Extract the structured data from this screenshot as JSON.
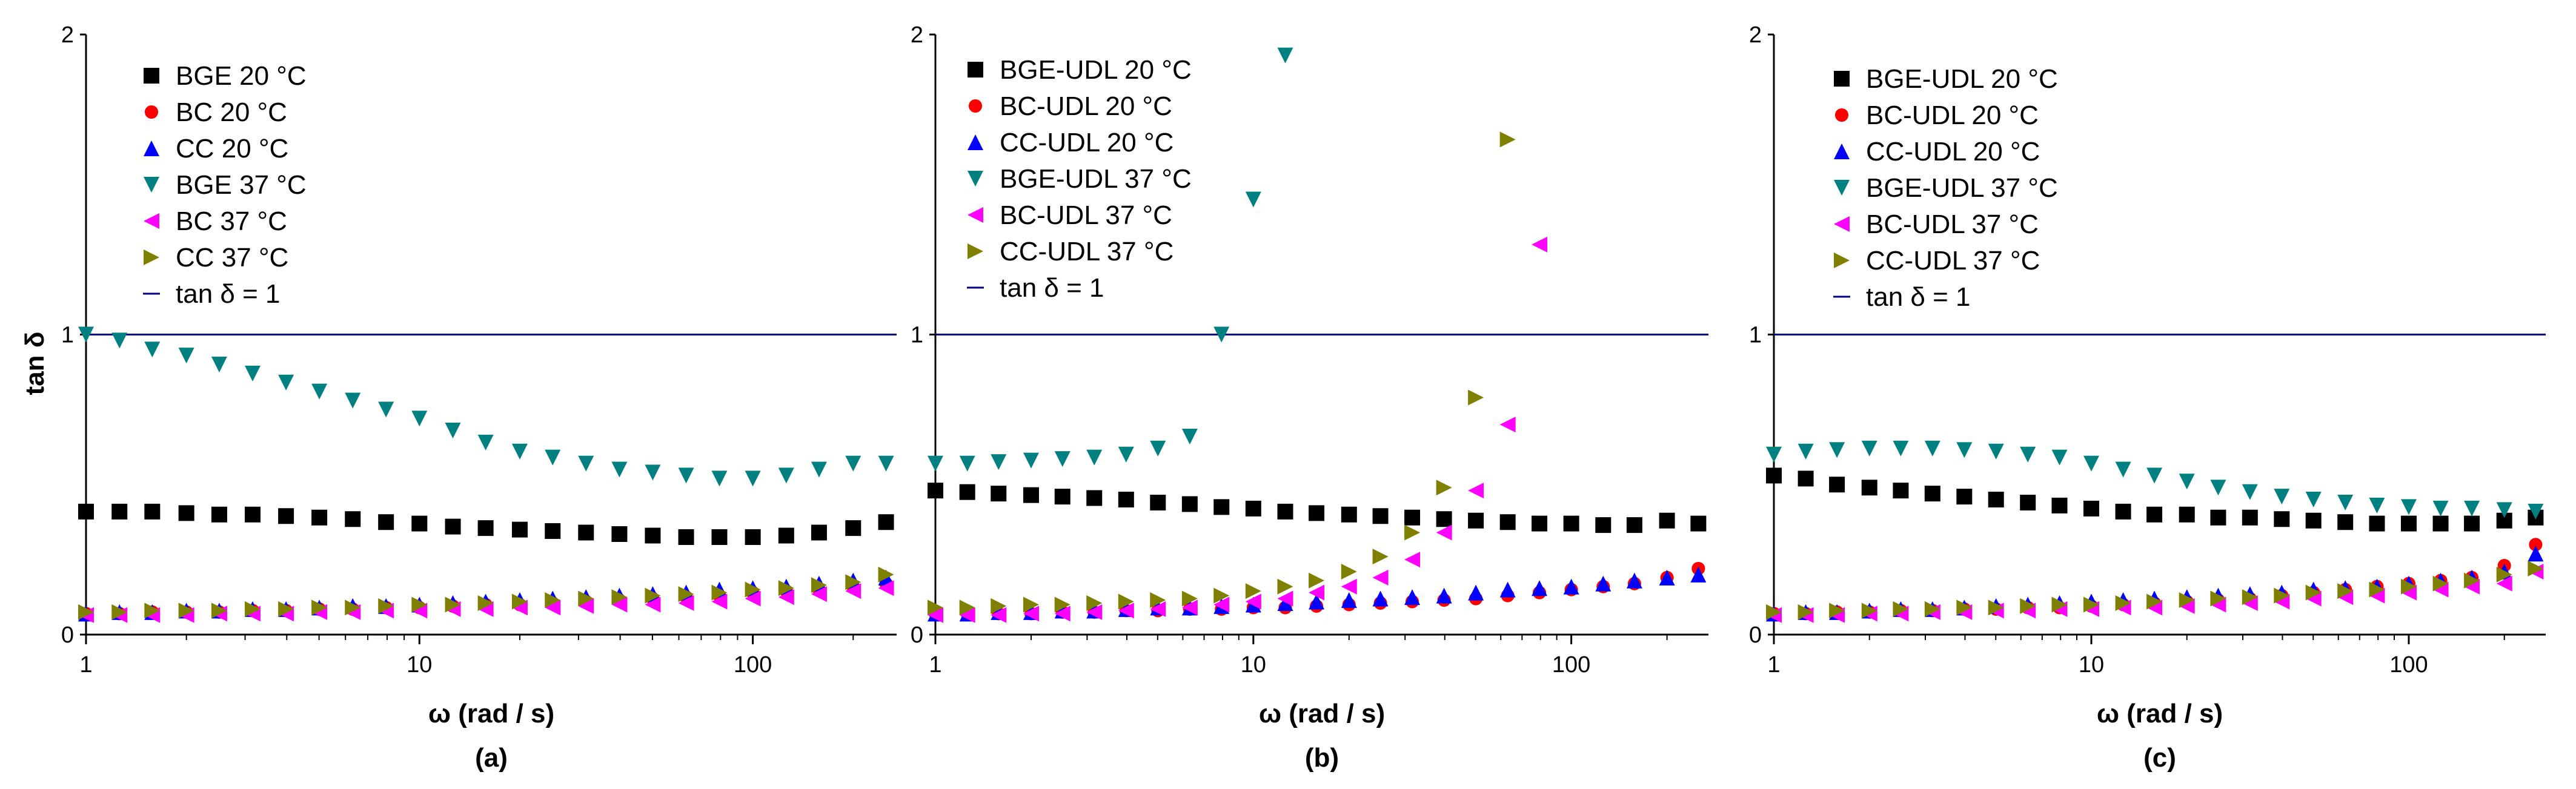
{
  "figure": {
    "xlabel": "ω (rad / s)",
    "ylabel": "tan δ",
    "yticks": [
      "0",
      "1",
      "2"
    ],
    "xticks": [
      "1",
      "10",
      "100"
    ],
    "colors": {
      "series_0": "#000000",
      "series_1": "#ff0000",
      "series_2": "#0000ff",
      "series_3": "#008080",
      "series_4": "#ff00ff",
      "series_5": "#808000",
      "tan1_line": "#000080"
    }
  },
  "chart_data": [
    {
      "type": "scatter",
      "panel_label": "(a)",
      "title": "",
      "xlabel": "ω (rad / s)",
      "ylabel": "tan δ",
      "xscale": "log",
      "xlim": [
        1,
        270
      ],
      "ylim": [
        0,
        2
      ],
      "xticks": [
        1,
        10,
        100
      ],
      "yticks": [
        0,
        1,
        2
      ],
      "hline": {
        "y": 1,
        "label": "tan δ = 1"
      },
      "legend_position": "top-left",
      "x": [
        1,
        1.26,
        1.58,
        2,
        2.51,
        3.16,
        3.98,
        5.01,
        6.31,
        7.94,
        10,
        12.6,
        15.8,
        20,
        25.1,
        31.6,
        39.8,
        50.1,
        63.1,
        79.4,
        100,
        126,
        158,
        200,
        251
      ],
      "series": [
        {
          "name": "BGE 20 °C",
          "marker": "square",
          "values": [
            0.41,
            0.41,
            0.41,
            0.405,
            0.4,
            0.4,
            0.395,
            0.39,
            0.385,
            0.375,
            0.37,
            0.36,
            0.355,
            0.35,
            0.345,
            0.34,
            0.335,
            0.33,
            0.325,
            0.325,
            0.325,
            0.33,
            0.34,
            0.355,
            0.375
          ]
        },
        {
          "name": "BC 20 °C",
          "marker": "circle",
          "values": [
            0.07,
            0.07,
            0.075,
            0.075,
            0.075,
            0.08,
            0.08,
            0.085,
            0.085,
            0.09,
            0.09,
            0.095,
            0.1,
            0.1,
            0.105,
            0.11,
            0.115,
            0.12,
            0.125,
            0.13,
            0.14,
            0.145,
            0.15,
            0.16,
            0.17
          ]
        },
        {
          "name": "CC 20 °C",
          "marker": "triangle-up",
          "values": [
            0.07,
            0.075,
            0.075,
            0.08,
            0.08,
            0.085,
            0.085,
            0.09,
            0.095,
            0.095,
            0.1,
            0.105,
            0.11,
            0.115,
            0.12,
            0.125,
            0.13,
            0.135,
            0.14,
            0.15,
            0.155,
            0.16,
            0.17,
            0.18,
            0.19
          ]
        },
        {
          "name": "BGE 37 °C",
          "marker": "triangle-down",
          "values": [
            1.0,
            0.98,
            0.95,
            0.93,
            0.9,
            0.87,
            0.84,
            0.81,
            0.78,
            0.75,
            0.72,
            0.68,
            0.64,
            0.61,
            0.59,
            0.57,
            0.55,
            0.54,
            0.53,
            0.52,
            0.52,
            0.53,
            0.55,
            0.57,
            0.57
          ]
        },
        {
          "name": "BC 37 °C",
          "marker": "triangle-left",
          "values": [
            0.065,
            0.065,
            0.065,
            0.065,
            0.07,
            0.07,
            0.07,
            0.075,
            0.075,
            0.08,
            0.08,
            0.085,
            0.085,
            0.09,
            0.09,
            0.095,
            0.1,
            0.1,
            0.105,
            0.11,
            0.12,
            0.125,
            0.135,
            0.145,
            0.155
          ]
        },
        {
          "name": "CC 37 °C",
          "marker": "triangle-right",
          "values": [
            0.075,
            0.075,
            0.08,
            0.08,
            0.08,
            0.085,
            0.085,
            0.09,
            0.09,
            0.095,
            0.1,
            0.1,
            0.105,
            0.11,
            0.115,
            0.12,
            0.125,
            0.13,
            0.135,
            0.14,
            0.15,
            0.155,
            0.165,
            0.175,
            0.2
          ]
        }
      ]
    },
    {
      "type": "scatter",
      "panel_label": "(b)",
      "title": "",
      "xlabel": "ω (rad / s)",
      "ylabel": "",
      "xscale": "log",
      "xlim": [
        1,
        270
      ],
      "ylim": [
        0,
        2
      ],
      "xticks": [
        1,
        10,
        100
      ],
      "yticks": [
        0,
        1,
        2
      ],
      "hline": {
        "y": 1,
        "label": "tan δ = 1"
      },
      "legend_position": "top-left",
      "x": [
        1,
        1.26,
        1.58,
        2,
        2.51,
        3.16,
        3.98,
        5.01,
        6.31,
        7.94,
        10,
        12.6,
        15.8,
        20,
        25.1,
        31.6,
        39.8,
        50.1,
        63.1,
        79.4,
        100,
        126,
        158,
        200,
        251
      ],
      "series": [
        {
          "name": "BGE-UDL 20 °C",
          "marker": "square",
          "values": [
            0.48,
            0.475,
            0.47,
            0.465,
            0.46,
            0.455,
            0.45,
            0.44,
            0.435,
            0.425,
            0.42,
            0.41,
            0.405,
            0.4,
            0.395,
            0.39,
            0.385,
            0.38,
            0.375,
            0.37,
            0.37,
            0.365,
            0.365,
            0.38,
            0.37
          ]
        },
        {
          "name": "BC-UDL 20 °C",
          "marker": "circle",
          "values": [
            0.07,
            0.07,
            0.07,
            0.07,
            0.075,
            0.075,
            0.08,
            0.08,
            0.085,
            0.085,
            0.09,
            0.09,
            0.095,
            0.1,
            0.105,
            0.11,
            0.115,
            0.12,
            0.13,
            0.14,
            0.15,
            0.16,
            0.17,
            0.19,
            0.22
          ]
        },
        {
          "name": "CC-UDL 20 °C",
          "marker": "triangle-up",
          "values": [
            0.07,
            0.07,
            0.075,
            0.075,
            0.08,
            0.08,
            0.085,
            0.09,
            0.09,
            0.095,
            0.1,
            0.105,
            0.11,
            0.115,
            0.12,
            0.125,
            0.13,
            0.14,
            0.15,
            0.155,
            0.16,
            0.17,
            0.18,
            0.19,
            0.2
          ]
        },
        {
          "name": "BGE-UDL 37 °C",
          "marker": "triangle-down",
          "x": [
            1,
            1.26,
            1.58,
            2,
            2.51,
            3.16,
            3.98,
            5.01,
            6.31,
            7.94,
            10,
            12.6
          ],
          "values": [
            0.57,
            0.57,
            0.575,
            0.58,
            0.585,
            0.59,
            0.6,
            0.62,
            0.66,
            1.0,
            1.45,
            1.93
          ]
        },
        {
          "name": "BC-UDL 37 °C",
          "marker": "triangle-left",
          "x": [
            1,
            1.26,
            1.58,
            2,
            2.51,
            3.16,
            3.98,
            5.01,
            6.31,
            7.94,
            10,
            12.6,
            15.8,
            20,
            25.1,
            31.6,
            39.8,
            50.1,
            63.1,
            79.4
          ],
          "values": [
            0.065,
            0.065,
            0.065,
            0.07,
            0.07,
            0.075,
            0.08,
            0.085,
            0.09,
            0.1,
            0.11,
            0.12,
            0.14,
            0.16,
            0.19,
            0.25,
            0.34,
            0.48,
            0.7,
            1.3
          ]
        },
        {
          "name": "CC-UDL 37 °C",
          "marker": "triangle-right",
          "x": [
            1,
            1.26,
            1.58,
            2,
            2.51,
            3.16,
            3.98,
            5.01,
            6.31,
            7.94,
            10,
            12.6,
            15.8,
            20,
            25.1,
            31.6,
            39.8,
            50.1,
            63.1
          ],
          "values": [
            0.09,
            0.09,
            0.095,
            0.1,
            0.1,
            0.105,
            0.11,
            0.115,
            0.12,
            0.13,
            0.145,
            0.16,
            0.18,
            0.21,
            0.26,
            0.34,
            0.49,
            0.79,
            1.65
          ]
        }
      ]
    },
    {
      "type": "scatter",
      "panel_label": "(c)",
      "title": "",
      "xlabel": "ω (rad / s)",
      "ylabel": "",
      "xscale": "log",
      "xlim": [
        1,
        270
      ],
      "ylim": [
        0,
        2
      ],
      "xticks": [
        1,
        10,
        100
      ],
      "yticks": [
        0,
        1,
        2
      ],
      "hline": {
        "y": 1,
        "label": "tan δ = 1"
      },
      "legend_position": "top-left",
      "x": [
        1,
        1.26,
        1.58,
        2,
        2.51,
        3.16,
        3.98,
        5.01,
        6.31,
        7.94,
        10,
        12.6,
        15.8,
        20,
        25.1,
        31.6,
        39.8,
        50.1,
        63.1,
        79.4,
        100,
        126,
        158,
        200,
        251
      ],
      "series": [
        {
          "name": "BGE-UDL 20 °C",
          "marker": "square",
          "values": [
            0.53,
            0.52,
            0.5,
            0.49,
            0.48,
            0.47,
            0.46,
            0.45,
            0.44,
            0.43,
            0.42,
            0.41,
            0.4,
            0.4,
            0.39,
            0.39,
            0.385,
            0.38,
            0.375,
            0.37,
            0.37,
            0.37,
            0.37,
            0.38,
            0.39
          ]
        },
        {
          "name": "BC-UDL 20 °C",
          "marker": "circle",
          "values": [
            0.07,
            0.07,
            0.075,
            0.075,
            0.08,
            0.08,
            0.085,
            0.085,
            0.09,
            0.09,
            0.095,
            0.1,
            0.105,
            0.11,
            0.115,
            0.12,
            0.13,
            0.14,
            0.15,
            0.16,
            0.17,
            0.18,
            0.19,
            0.23,
            0.3
          ]
        },
        {
          "name": "CC-UDL 20 °C",
          "marker": "triangle-up",
          "values": [
            0.07,
            0.075,
            0.075,
            0.08,
            0.085,
            0.085,
            0.09,
            0.095,
            0.1,
            0.105,
            0.11,
            0.115,
            0.12,
            0.125,
            0.13,
            0.135,
            0.14,
            0.15,
            0.155,
            0.16,
            0.17,
            0.18,
            0.19,
            0.21,
            0.27
          ]
        },
        {
          "name": "BGE-UDL 37 °C",
          "marker": "triangle-down",
          "values": [
            0.6,
            0.61,
            0.615,
            0.62,
            0.62,
            0.62,
            0.615,
            0.61,
            0.6,
            0.59,
            0.57,
            0.55,
            0.53,
            0.51,
            0.49,
            0.475,
            0.46,
            0.45,
            0.44,
            0.43,
            0.425,
            0.42,
            0.42,
            0.415,
            0.41
          ]
        },
        {
          "name": "BC-UDL 37 °C",
          "marker": "triangle-left",
          "values": [
            0.065,
            0.065,
            0.065,
            0.07,
            0.07,
            0.075,
            0.075,
            0.08,
            0.08,
            0.085,
            0.085,
            0.09,
            0.09,
            0.095,
            0.1,
            0.105,
            0.11,
            0.12,
            0.125,
            0.13,
            0.14,
            0.15,
            0.16,
            0.17,
            0.21
          ]
        },
        {
          "name": "CC-UDL 37 °C",
          "marker": "triangle-right",
          "values": [
            0.075,
            0.075,
            0.08,
            0.08,
            0.085,
            0.085,
            0.09,
            0.09,
            0.095,
            0.1,
            0.1,
            0.105,
            0.11,
            0.115,
            0.12,
            0.125,
            0.13,
            0.14,
            0.145,
            0.15,
            0.16,
            0.17,
            0.18,
            0.2,
            0.22
          ]
        }
      ]
    }
  ]
}
